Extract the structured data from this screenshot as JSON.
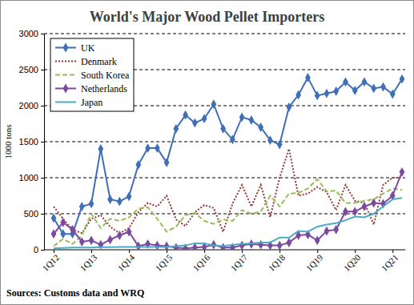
{
  "chart_data": {
    "type": "line",
    "title": "World's Major Wood Pellet Importers",
    "y_label": "1000 tons",
    "source": "Sources: Customs data and WRQ",
    "categories": [
      "1Q12",
      null,
      null,
      null,
      "1Q13",
      null,
      null,
      null,
      "1Q14",
      null,
      null,
      null,
      "1Q15",
      null,
      null,
      null,
      "1Q16",
      null,
      null,
      null,
      "1Q17",
      null,
      null,
      null,
      "1Q18",
      null,
      null,
      null,
      "1Q19",
      null,
      null,
      null,
      "1Q20",
      null,
      null,
      null,
      "1Q21",
      null
    ],
    "series": [
      {
        "name": "UK",
        "color": "#3f6fb5",
        "line_style": "solid",
        "marker": "diamond",
        "values": [
          440,
          220,
          220,
          600,
          640,
          1400,
          700,
          670,
          740,
          1180,
          1410,
          1410,
          1210,
          1680,
          1870,
          1760,
          1820,
          2020,
          1680,
          1530,
          1840,
          1800,
          1700,
          1520,
          1460,
          1980,
          2150,
          2390,
          2140,
          2170,
          2200,
          2330,
          2210,
          2330,
          2240,
          2260,
          2160,
          2370
        ]
      },
      {
        "name": "Denmark",
        "color": "#953735",
        "line_style": "dotted",
        "marker": "none",
        "values": [
          600,
          430,
          280,
          230,
          430,
          480,
          320,
          230,
          300,
          520,
          650,
          600,
          750,
          420,
          330,
          520,
          620,
          580,
          250,
          640,
          900,
          600,
          900,
          450,
          1000,
          1400,
          750,
          780,
          870,
          800,
          550,
          900,
          680,
          650,
          350,
          900,
          1000,
          1000
        ]
      },
      {
        "name": "South Korea",
        "color": "#9bbb59",
        "line_style": "dashed",
        "marker": "none",
        "values": [
          50,
          150,
          80,
          200,
          500,
          300,
          430,
          400,
          450,
          570,
          590,
          430,
          250,
          320,
          480,
          510,
          400,
          360,
          420,
          400,
          550,
          500,
          530,
          750,
          600,
          780,
          790,
          850,
          980,
          810,
          820,
          650,
          650,
          680,
          700,
          780,
          850,
          830
        ]
      },
      {
        "name": "Netherlands",
        "color": "#7b4a9e",
        "line_style": "solid",
        "marker": "diamond",
        "values": [
          220,
          380,
          280,
          110,
          130,
          70,
          140,
          200,
          250,
          50,
          80,
          60,
          50,
          30,
          20,
          30,
          40,
          70,
          30,
          30,
          60,
          80,
          70,
          60,
          60,
          100,
          200,
          210,
          130,
          260,
          280,
          530,
          530,
          600,
          650,
          640,
          750,
          1080
        ]
      },
      {
        "name": "Japan",
        "color": "#4bacc6",
        "line_style": "solid",
        "marker": "none",
        "values": [
          20,
          25,
          30,
          30,
          30,
          35,
          35,
          40,
          40,
          40,
          40,
          40,
          40,
          50,
          60,
          90,
          90,
          60,
          50,
          70,
          80,
          90,
          100,
          100,
          170,
          170,
          260,
          250,
          320,
          350,
          370,
          410,
          460,
          450,
          500,
          600,
          700,
          720
        ]
      }
    ],
    "ylim": [
      0,
      3000
    ],
    "yticks": [
      0,
      500,
      1000,
      1500,
      2000,
      2500,
      3000
    ],
    "grid": true,
    "legend": "top-left"
  }
}
